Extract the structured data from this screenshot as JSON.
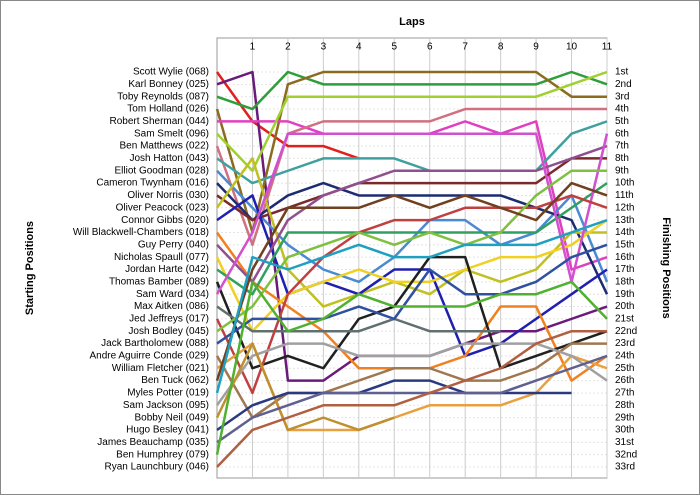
{
  "chart_data": {
    "type": "line",
    "xlabel": "Laps",
    "ylabel": "Starting Positions",
    "y2label": "Finishing Positions",
    "x": [
      0,
      1,
      2,
      3,
      4,
      5,
      6,
      7,
      8,
      9,
      10,
      11
    ],
    "xlim": [
      0,
      11
    ],
    "xticks": [
      1,
      2,
      3,
      4,
      5,
      6,
      7,
      8,
      9,
      10,
      11
    ],
    "ylim": [
      1,
      33
    ],
    "inverted": true,
    "grid": true,
    "yticks": [
      {
        "value": 1,
        "label": "1st"
      },
      {
        "value": 2,
        "label": "2nd"
      },
      {
        "value": 3,
        "label": "3rd"
      },
      {
        "value": 4,
        "label": "4th"
      },
      {
        "value": 5,
        "label": "5th"
      },
      {
        "value": 6,
        "label": "6th"
      },
      {
        "value": 7,
        "label": "7th"
      },
      {
        "value": 8,
        "label": "8th"
      },
      {
        "value": 9,
        "label": "9th"
      },
      {
        "value": 10,
        "label": "10th"
      },
      {
        "value": 11,
        "label": "11th"
      },
      {
        "value": 12,
        "label": "12th"
      },
      {
        "value": 13,
        "label": "13th"
      },
      {
        "value": 14,
        "label": "14th"
      },
      {
        "value": 15,
        "label": "15th"
      },
      {
        "value": 16,
        "label": "16th"
      },
      {
        "value": 17,
        "label": "17th"
      },
      {
        "value": 18,
        "label": "18th"
      },
      {
        "value": 19,
        "label": "19th"
      },
      {
        "value": 20,
        "label": "20th"
      },
      {
        "value": 21,
        "label": "21st"
      },
      {
        "value": 22,
        "label": "22nd"
      },
      {
        "value": 23,
        "label": "23rd"
      },
      {
        "value": 24,
        "label": "24th"
      },
      {
        "value": 25,
        "label": "25th"
      },
      {
        "value": 26,
        "label": "26th"
      },
      {
        "value": 27,
        "label": "27th"
      },
      {
        "value": 28,
        "label": "28th"
      },
      {
        "value": 29,
        "label": "29th"
      },
      {
        "value": 30,
        "label": "30th"
      },
      {
        "value": 31,
        "label": "31st"
      },
      {
        "value": 32,
        "label": "32nd"
      },
      {
        "value": 33,
        "label": "33rd"
      }
    ],
    "series": [
      {
        "name": "Scott Wylie (068)",
        "color": "#e0201c",
        "values": [
          1,
          5,
          7,
          7,
          8,
          null,
          null,
          null,
          null,
          null,
          null,
          null
        ]
      },
      {
        "name": "Karl Bonney (025)",
        "color": "#6a1b7a",
        "values": [
          2,
          1,
          26,
          26,
          24,
          24,
          24,
          23,
          22,
          22,
          21,
          20
        ]
      },
      {
        "name": "Toby Reynolds (087)",
        "color": "#2e9e3a",
        "values": [
          3,
          4,
          1,
          2,
          2,
          2,
          2,
          2,
          2,
          2,
          1,
          2
        ]
      },
      {
        "name": "Tom Holland (026)",
        "color": "#8b6b1f",
        "values": [
          4,
          14,
          2,
          1,
          1,
          1,
          1,
          1,
          1,
          1,
          3,
          3
        ]
      },
      {
        "name": "Robert Sherman (044)",
        "color": "#e040c0",
        "values": [
          5,
          5,
          5,
          6,
          6,
          6,
          6,
          5,
          6,
          5,
          17,
          16
        ]
      },
      {
        "name": "Sam Smelt (096)",
        "color": "#a0d030",
        "values": [
          6,
          9,
          3,
          3,
          3,
          3,
          3,
          3,
          3,
          3,
          2,
          1
        ]
      },
      {
        "name": "Ben Matthews (022)",
        "color": "#d07080",
        "values": [
          7,
          15,
          6,
          5,
          5,
          5,
          5,
          4,
          4,
          4,
          4,
          4
        ]
      },
      {
        "name": "Josh Hatton (043)",
        "color": "#40a0a0",
        "values": [
          8,
          10,
          9,
          8,
          8,
          8,
          9,
          9,
          9,
          9,
          6,
          5
        ]
      },
      {
        "name": "Elliot Goodman (028)",
        "color": "#4a8ad0",
        "values": [
          9,
          12,
          15,
          17,
          18,
          16,
          13,
          13,
          15,
          14,
          11,
          18
        ]
      },
      {
        "name": "Cameron Twynham (016)",
        "color": "#1d2c70",
        "values": [
          10,
          13,
          11,
          10,
          11,
          11,
          11,
          11,
          11,
          12,
          13,
          19
        ]
      },
      {
        "name": "Oliver Norris (030)",
        "color": "#7a2a2a",
        "values": [
          11,
          13,
          12,
          11,
          10,
          10,
          10,
          10,
          10,
          10,
          8,
          8
        ]
      },
      {
        "name": "Oliver Peacock (023)",
        "color": "#c0c020",
        "values": [
          12,
          8,
          17,
          20,
          19,
          18,
          19,
          17,
          18,
          17,
          14,
          14
        ]
      },
      {
        "name": "Connor Gibbs (020)",
        "color": "#2020b0",
        "values": [
          13,
          11,
          19,
          18,
          19,
          17,
          17,
          24,
          23,
          21,
          19,
          17
        ]
      },
      {
        "name": "Will Blackwell-Chambers (018)",
        "color": "#f08020",
        "values": [
          14,
          18,
          20,
          22,
          25,
          25,
          25,
          24,
          20,
          20,
          26,
          24
        ]
      },
      {
        "name": "Guy Perry (040)",
        "color": "#905090",
        "values": [
          15,
          18,
          13,
          11,
          10,
          9,
          9,
          9,
          9,
          9,
          8,
          7
        ]
      },
      {
        "name": "Nicholas Spaull (077)",
        "color": "#f0d020",
        "values": [
          16,
          22,
          19,
          18,
          17,
          18,
          18,
          17,
          16,
          16,
          15,
          13
        ]
      },
      {
        "name": "Jordan Harte (042)",
        "color": "#30a060",
        "values": [
          17,
          19,
          14,
          14,
          14,
          14,
          14,
          14,
          14,
          14,
          12,
          10
        ]
      },
      {
        "name": "Thomas Bamber (089)",
        "color": "#202020",
        "values": [
          18,
          25,
          24,
          25,
          21,
          20,
          16,
          16,
          25,
          24,
          23,
          22
        ]
      },
      {
        "name": "Sam Ward (034)",
        "color": "#d050d0",
        "values": [
          19,
          14,
          6,
          6,
          6,
          6,
          6,
          6,
          6,
          6,
          18,
          6
        ]
      },
      {
        "name": "Max Aitken (086)",
        "color": "#607070",
        "values": [
          20,
          22,
          22,
          22,
          22,
          21,
          22,
          22,
          22,
          null,
          null,
          null
        ]
      },
      {
        "name": "Jed Jeffreys (017)",
        "color": "#c04040",
        "values": [
          21,
          27,
          19,
          16,
          14,
          13,
          13,
          12,
          12,
          12,
          11,
          12
        ]
      },
      {
        "name": "Josh Bodley (045)",
        "color": "#80c040",
        "values": [
          22,
          20,
          16,
          15,
          14,
          15,
          14,
          15,
          14,
          11,
          9,
          9
        ]
      },
      {
        "name": "Jack Bartholomew (088)",
        "color": "#3050a0",
        "values": [
          23,
          21,
          21,
          21,
          20,
          21,
          17,
          19,
          19,
          18,
          16,
          15
        ]
      },
      {
        "name": "Andre Aguirre Conde (029)",
        "color": "#a07850",
        "values": [
          24,
          29,
          27,
          27,
          26,
          25,
          25,
          26,
          26,
          25,
          23,
          23
        ]
      },
      {
        "name": "William Fletcher (021)",
        "color": "#e8a040",
        "values": [
          25,
          23,
          30,
          30,
          30,
          29,
          28,
          28,
          28,
          27,
          24,
          25
        ]
      },
      {
        "name": "Ben Tuck (062)",
        "color": "#704020",
        "values": [
          26,
          17,
          12,
          12,
          12,
          11,
          12,
          11,
          12,
          13,
          10,
          11
        ]
      },
      {
        "name": "Myles Potter (019)",
        "color": "#20a0c0",
        "values": [
          27,
          16,
          17,
          16,
          15,
          16,
          16,
          15,
          15,
          15,
          14,
          13
        ]
      },
      {
        "name": "Sam Jackson (095)",
        "color": "#a0a0a0",
        "values": [
          28,
          24,
          23,
          23,
          24,
          24,
          24,
          23,
          23,
          23,
          24,
          26
        ]
      },
      {
        "name": "Bobby Neil (049)",
        "color": "#c09030",
        "values": [
          29,
          23,
          30,
          29,
          30,
          29,
          null,
          null,
          null,
          null,
          null,
          null
        ]
      },
      {
        "name": "Hugo Besley (041)",
        "color": "#2a3a80",
        "values": [
          30,
          28,
          27,
          27,
          27,
          26,
          26,
          27,
          27,
          27,
          27,
          null
        ]
      },
      {
        "name": "James Beauchamp (035)",
        "color": "#606090",
        "values": [
          31,
          29,
          28,
          27,
          27,
          27,
          27,
          27,
          27,
          26,
          25,
          24
        ]
      },
      {
        "name": "Ben Humphrey (079)",
        "color": "#50b030",
        "values": [
          32,
          18,
          22,
          21,
          19,
          20,
          20,
          20,
          19,
          19,
          18,
          21
        ]
      },
      {
        "name": "Ryan Launchbury (046)",
        "color": "#b06040",
        "values": [
          33,
          30,
          29,
          28,
          28,
          28,
          27,
          26,
          25,
          23,
          22,
          22
        ]
      }
    ]
  }
}
